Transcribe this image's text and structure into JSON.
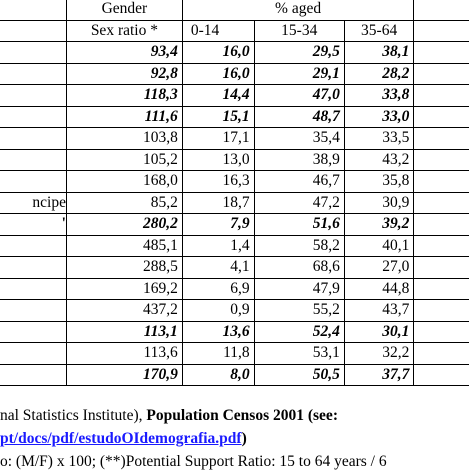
{
  "header": {
    "gender": "Gender",
    "aged": "% aged",
    "sex_ratio": "Sex ratio *",
    "age_0_14": "0-14",
    "age_15_34": "15-34",
    "age_35_64": "35-64"
  },
  "rows": [
    {
      "label": "",
      "bold": true,
      "values": [
        "93,4",
        "16,0",
        "29,5",
        "38,1"
      ]
    },
    {
      "label": "",
      "bold": true,
      "values": [
        "92,8",
        "16,0",
        "29,1",
        "28,2"
      ]
    },
    {
      "label": "",
      "bold": true,
      "values": [
        "118,3",
        "14,4",
        "47,0",
        "33,8"
      ]
    },
    {
      "label": "",
      "bold": true,
      "values": [
        "111,6",
        "15,1",
        "48,7",
        "33,0"
      ]
    },
    {
      "label": "",
      "bold": false,
      "values": [
        "103,8",
        "17,1",
        "35,4",
        "33,5"
      ]
    },
    {
      "label": "",
      "bold": false,
      "values": [
        "105,2",
        "13,0",
        "38,9",
        "43,2"
      ]
    },
    {
      "label": "",
      "bold": false,
      "values": [
        "168,0",
        "16,3",
        "46,7",
        "35,8"
      ]
    },
    {
      "label": "ncipe",
      "bold": false,
      "values": [
        "85,2",
        "18,7",
        "47,2",
        "30,9"
      ]
    },
    {
      "label": "'",
      "bold": true,
      "values": [
        "280,2",
        "7,9",
        "51,6",
        "39,2"
      ]
    },
    {
      "label": "",
      "bold": false,
      "values": [
        "485,1",
        "1,4",
        "58,2",
        "40,1"
      ]
    },
    {
      "label": "",
      "bold": false,
      "values": [
        "288,5",
        "4,1",
        "68,6",
        "27,0"
      ]
    },
    {
      "label": "",
      "bold": false,
      "values": [
        "169,2",
        "6,9",
        "47,9",
        "44,8"
      ]
    },
    {
      "label": "",
      "bold": false,
      "values": [
        "437,2",
        "0,9",
        "55,2",
        "43,7"
      ]
    },
    {
      "label": "",
      "bold": true,
      "values": [
        "113,1",
        "13,6",
        "52,4",
        "30,1"
      ]
    },
    {
      "label": "",
      "bold": false,
      "values": [
        "113,6",
        "11,8",
        "53,1",
        "32,2"
      ]
    },
    {
      "label": "",
      "bold": true,
      "values": [
        "170,9",
        "8,0",
        "50,5",
        "37,7"
      ]
    }
  ],
  "notes": {
    "line1_prefix": "nal Statistics Institute), ",
    "line1_bold": "Population Censos 2001 (see:",
    "line2_link": "pt/docs/pdf/estudoOIdemografia.pdf",
    "line2_suffix": ")",
    "line3": "o: (M/F) x 100;  (**)Potential Support Ratio: 15 to 64 years / 6"
  }
}
